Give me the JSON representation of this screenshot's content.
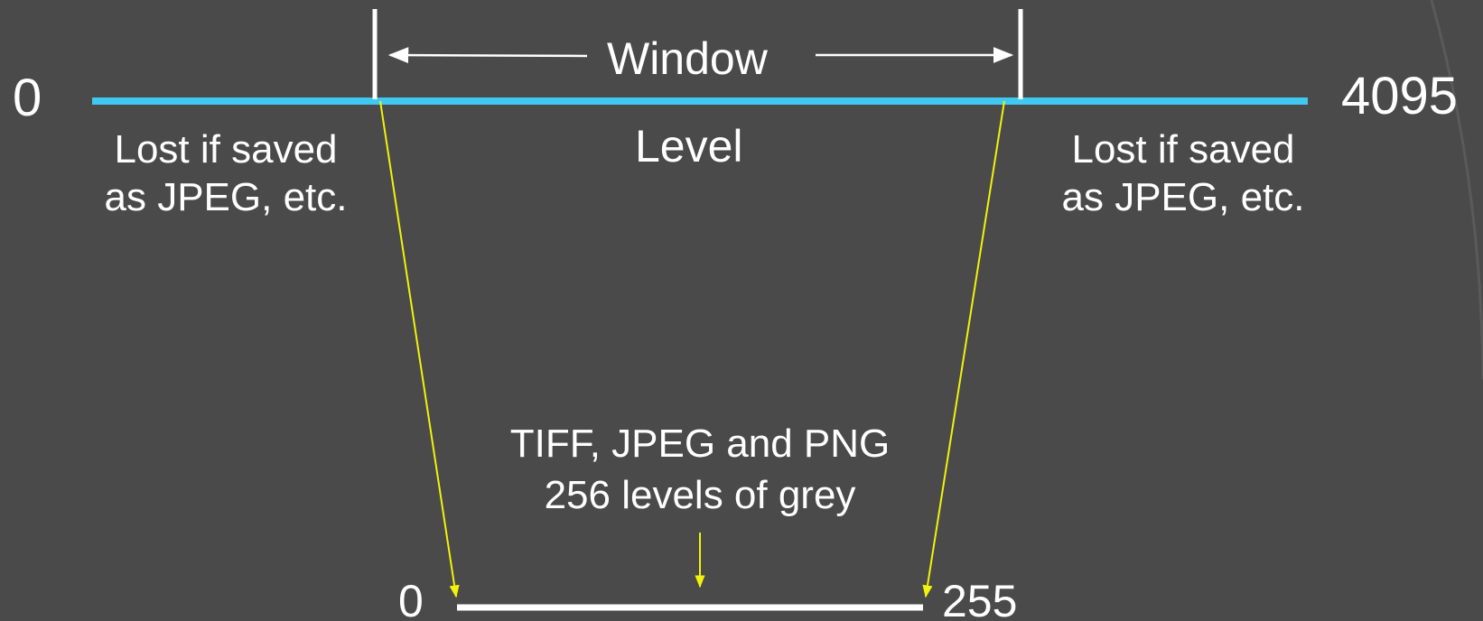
{
  "diagram": {
    "input_range": {
      "min_label": "0",
      "max_label": "4095"
    },
    "window_label": "Window",
    "level_label": "Level",
    "lost_left": {
      "line1": "Lost if saved",
      "line2": "as JPEG, etc."
    },
    "lost_right": {
      "line1": "Lost if saved",
      "line2": "as JPEG, etc."
    },
    "output_caption": {
      "line1": "TIFF, JPEG and PNG",
      "line2": "256 levels of grey"
    },
    "output_range": {
      "min_label": "0",
      "max_label": "255"
    }
  },
  "colors": {
    "background": "#4a4a4a",
    "range_bar": "#3fc8f0",
    "mapping_lines": "#f2f20a",
    "text": "#ffffff"
  }
}
